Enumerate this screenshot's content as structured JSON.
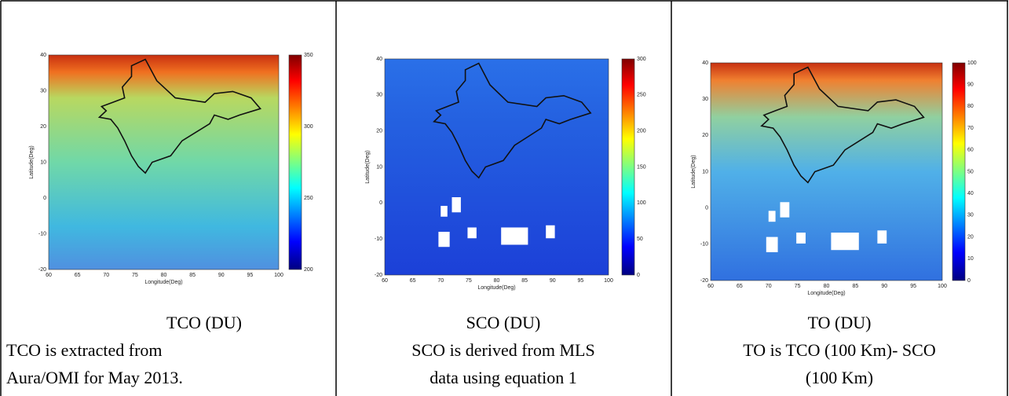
{
  "panels": [
    {
      "plot": {
        "y_ticks": [
          "40",
          "30",
          "20",
          "10",
          "0",
          "-10",
          "-20"
        ],
        "x_ticks": [
          "60",
          "65",
          "70",
          "75",
          "80",
          "85",
          "90",
          "95",
          "100"
        ],
        "x_label": "Longitude(Deg)",
        "y_label": "Latitude(Deg)",
        "colorbar_ticks": [
          "350",
          "300",
          "250",
          "200"
        ]
      },
      "title": "TCO (DU)",
      "description": [
        "TCO is extracted from",
        "Aura/OMI for May 2013."
      ]
    },
    {
      "plot": {
        "y_ticks": [
          "40",
          "30",
          "20",
          "10",
          "0",
          "-10",
          "-20"
        ],
        "x_ticks": [
          "60",
          "65",
          "70",
          "75",
          "80",
          "85",
          "90",
          "95",
          "100"
        ],
        "x_label": "Longitude(Deg)",
        "y_label": "Latitude(Deg)",
        "colorbar_ticks": [
          "300",
          "250",
          "200",
          "150",
          "100",
          "50",
          "0"
        ]
      },
      "title": "SCO (DU)",
      "description": [
        "SCO is derived from MLS",
        "data using equation 1"
      ]
    },
    {
      "plot": {
        "y_ticks": [
          "40",
          "30",
          "20",
          "10",
          "0",
          "-10",
          "-20"
        ],
        "x_ticks": [
          "60",
          "65",
          "70",
          "75",
          "80",
          "85",
          "90",
          "95",
          "100"
        ],
        "x_label": "Longitude(Deg)",
        "y_label": "Latitude(Deg)",
        "colorbar_ticks": [
          "100",
          "90",
          "80",
          "70",
          "60",
          "50",
          "40",
          "30",
          "20",
          "10",
          "0"
        ]
      },
      "title": "TO (DU)",
      "description": [
        "TO is TCO (100 Km)- SCO",
        "(100 Km)"
      ]
    }
  ]
}
